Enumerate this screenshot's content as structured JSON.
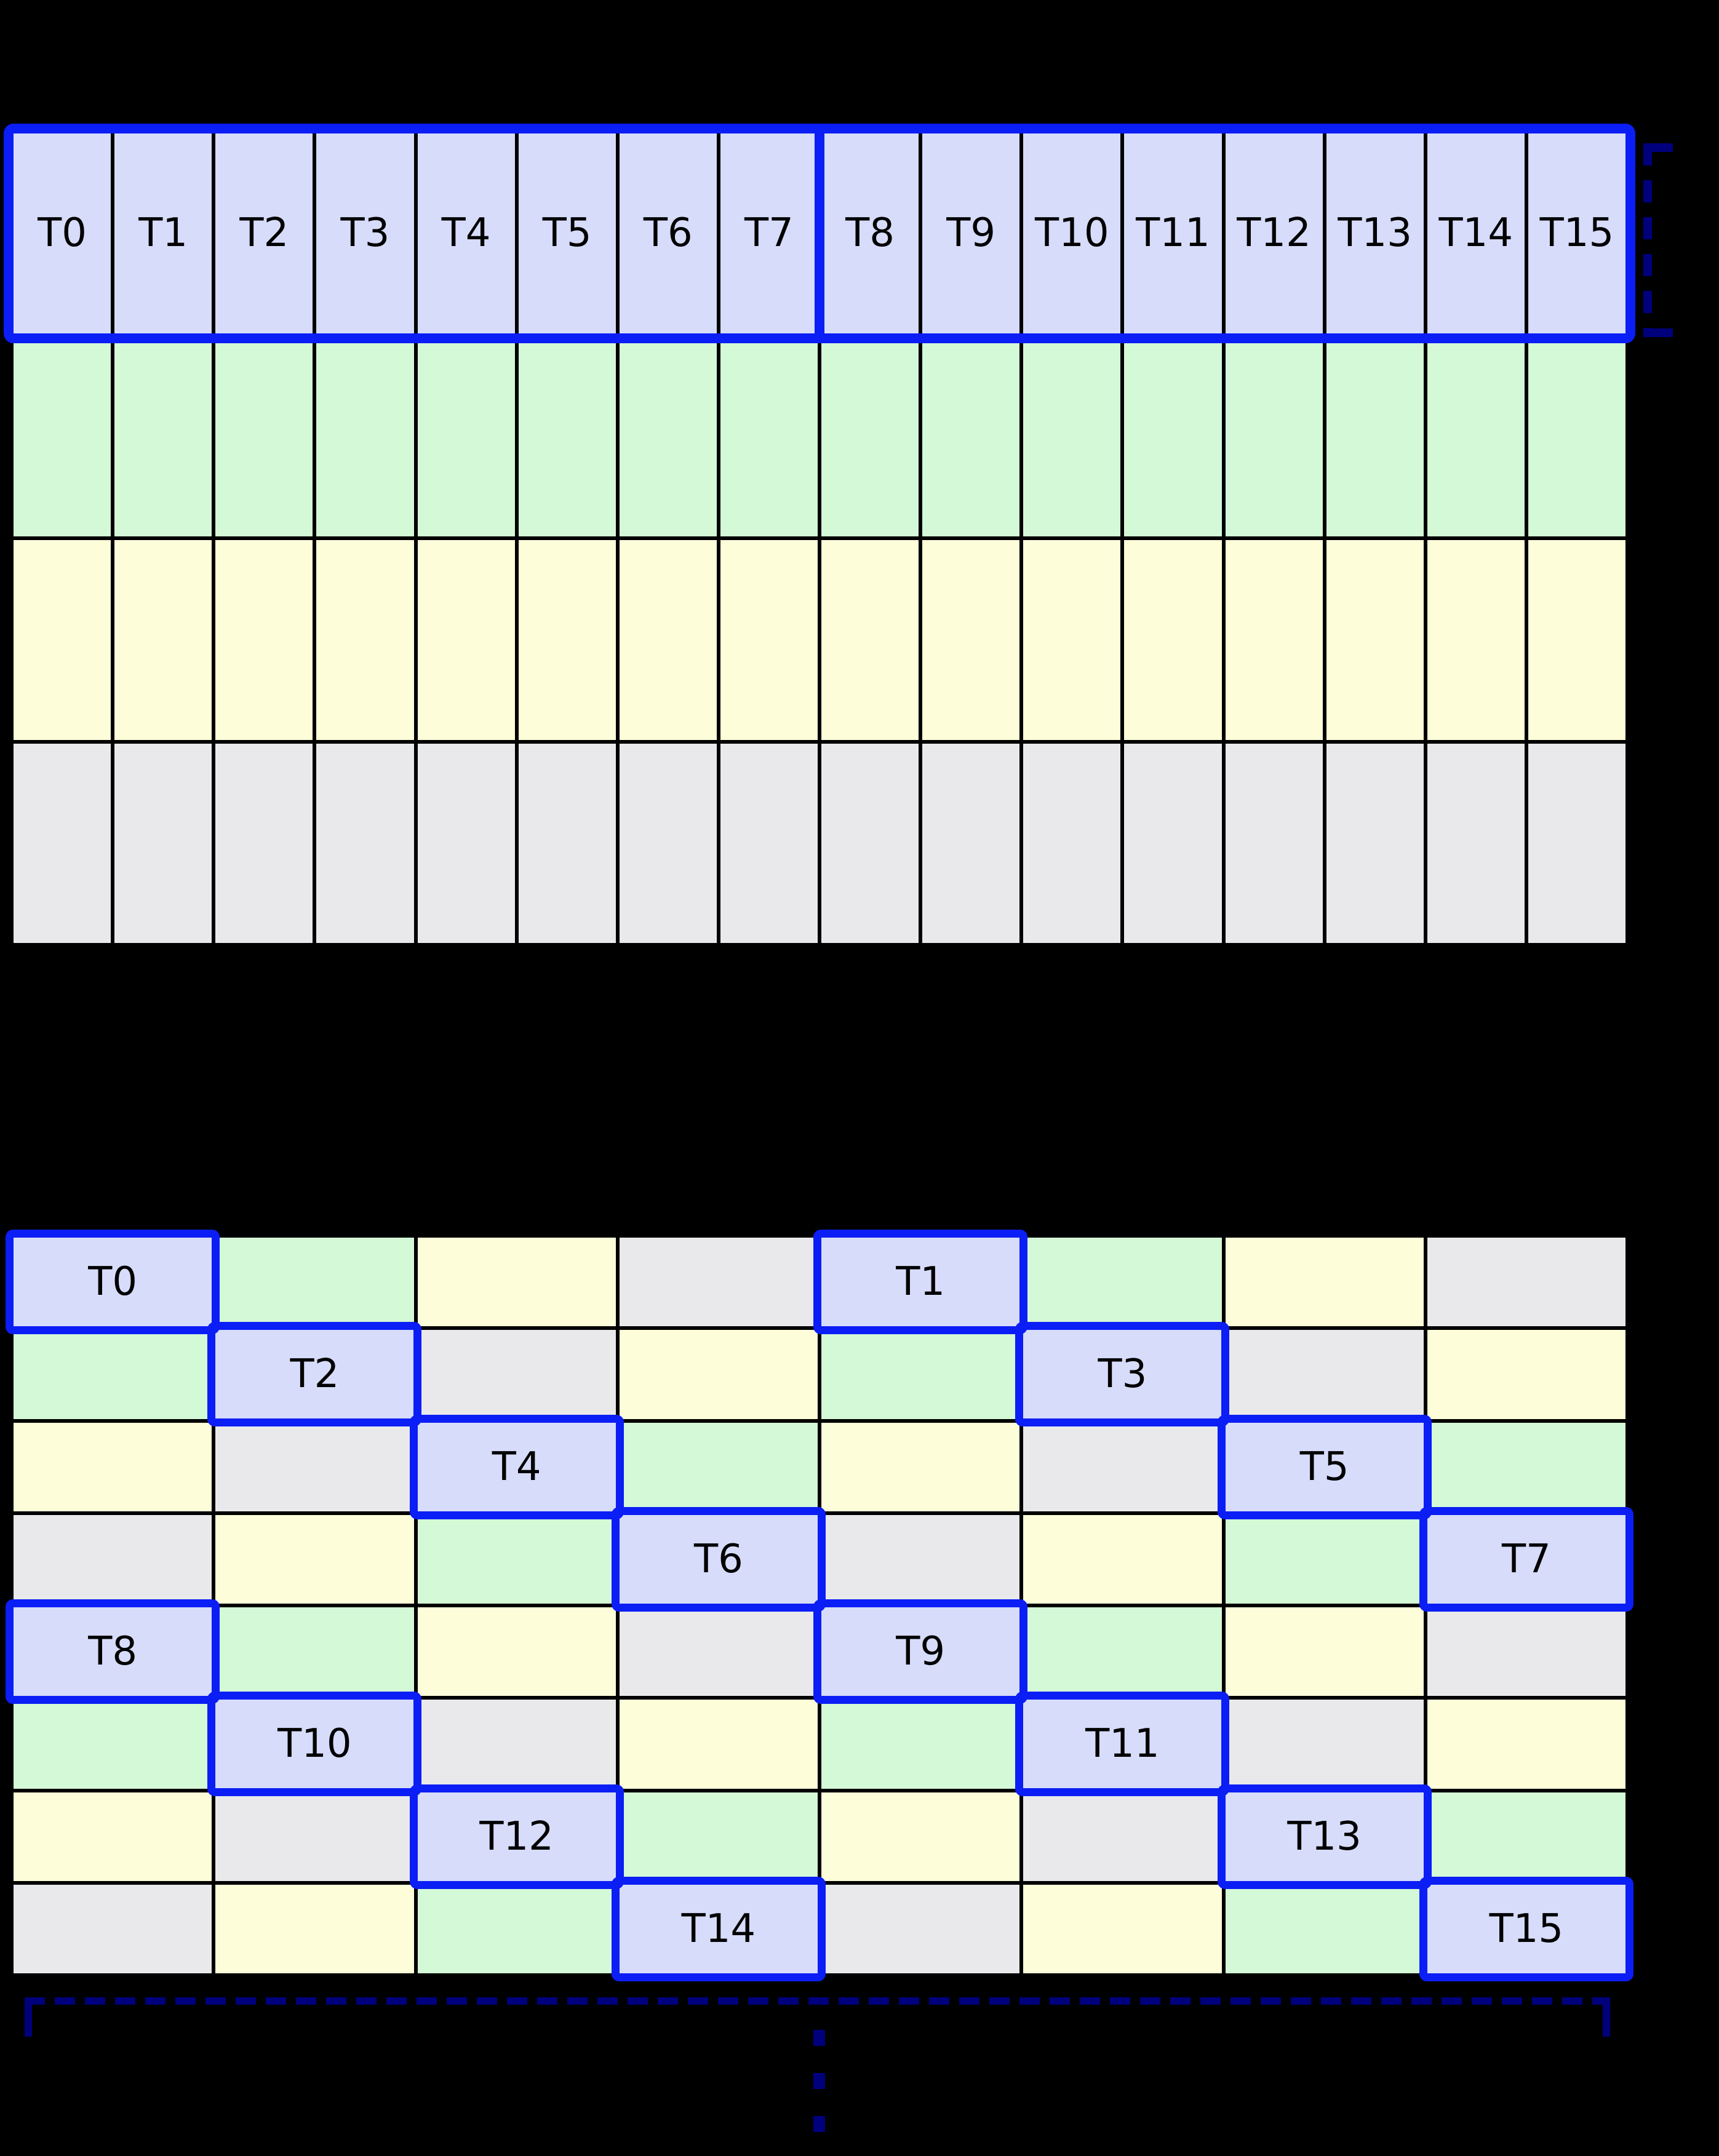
{
  "diagram": {
    "palette": {
      "background": "#000000",
      "thread_cell": "#d6dcf9",
      "bank_green": "#d4f9d7",
      "bank_yellow": "#fdfdd9",
      "bank_gray": "#e9e9eb",
      "highlight_blue": "#0b1ef5",
      "bracket_navy": "#00007d",
      "grid_line": "#000000",
      "label_text": "#000000"
    },
    "top_grid": {
      "columns": 16,
      "rows": 4,
      "thread_labels": [
        "T0",
        "T1",
        "T2",
        "T3",
        "T4",
        "T5",
        "T6",
        "T7",
        "T8",
        "T9",
        "T10",
        "T11",
        "T12",
        "T13",
        "T14",
        "T15"
      ],
      "row_color_keys": [
        "thread_cell",
        "bank_green",
        "bank_yellow",
        "bank_gray"
      ],
      "group_split_after": 8
    },
    "bottom_grid": {
      "columns": 8,
      "rows": 8,
      "color_matrix": [
        [
          "thread_cell",
          "bank_green",
          "bank_yellow",
          "bank_gray",
          "thread_cell",
          "bank_green",
          "bank_yellow",
          "bank_gray"
        ],
        [
          "bank_green",
          "thread_cell",
          "bank_gray",
          "bank_yellow",
          "bank_green",
          "thread_cell",
          "bank_gray",
          "bank_yellow"
        ],
        [
          "bank_yellow",
          "bank_gray",
          "thread_cell",
          "bank_green",
          "bank_yellow",
          "bank_gray",
          "thread_cell",
          "bank_green"
        ],
        [
          "bank_gray",
          "bank_yellow",
          "bank_green",
          "thread_cell",
          "bank_gray",
          "bank_yellow",
          "bank_green",
          "thread_cell"
        ],
        [
          "thread_cell",
          "bank_green",
          "bank_yellow",
          "bank_gray",
          "thread_cell",
          "bank_green",
          "bank_yellow",
          "bank_gray"
        ],
        [
          "bank_green",
          "thread_cell",
          "bank_gray",
          "bank_yellow",
          "bank_green",
          "thread_cell",
          "bank_gray",
          "bank_yellow"
        ],
        [
          "bank_yellow",
          "bank_gray",
          "thread_cell",
          "bank_green",
          "bank_yellow",
          "bank_gray",
          "thread_cell",
          "bank_green"
        ],
        [
          "bank_gray",
          "bank_yellow",
          "bank_green",
          "thread_cell",
          "bank_gray",
          "bank_yellow",
          "bank_green",
          "thread_cell"
        ]
      ],
      "thread_cells": [
        {
          "label": "T0",
          "row": 0,
          "col": 0
        },
        {
          "label": "T1",
          "row": 0,
          "col": 4
        },
        {
          "label": "T2",
          "row": 1,
          "col": 1
        },
        {
          "label": "T3",
          "row": 1,
          "col": 5
        },
        {
          "label": "T4",
          "row": 2,
          "col": 2
        },
        {
          "label": "T5",
          "row": 2,
          "col": 6
        },
        {
          "label": "T6",
          "row": 3,
          "col": 3
        },
        {
          "label": "T7",
          "row": 3,
          "col": 7
        },
        {
          "label": "T8",
          "row": 4,
          "col": 0
        },
        {
          "label": "T9",
          "row": 4,
          "col": 4
        },
        {
          "label": "T10",
          "row": 5,
          "col": 1
        },
        {
          "label": "T11",
          "row": 5,
          "col": 5
        },
        {
          "label": "T12",
          "row": 6,
          "col": 2
        },
        {
          "label": "T13",
          "row": 6,
          "col": 6
        },
        {
          "label": "T14",
          "row": 7,
          "col": 3
        },
        {
          "label": "T15",
          "row": 7,
          "col": 7
        }
      ]
    }
  }
}
